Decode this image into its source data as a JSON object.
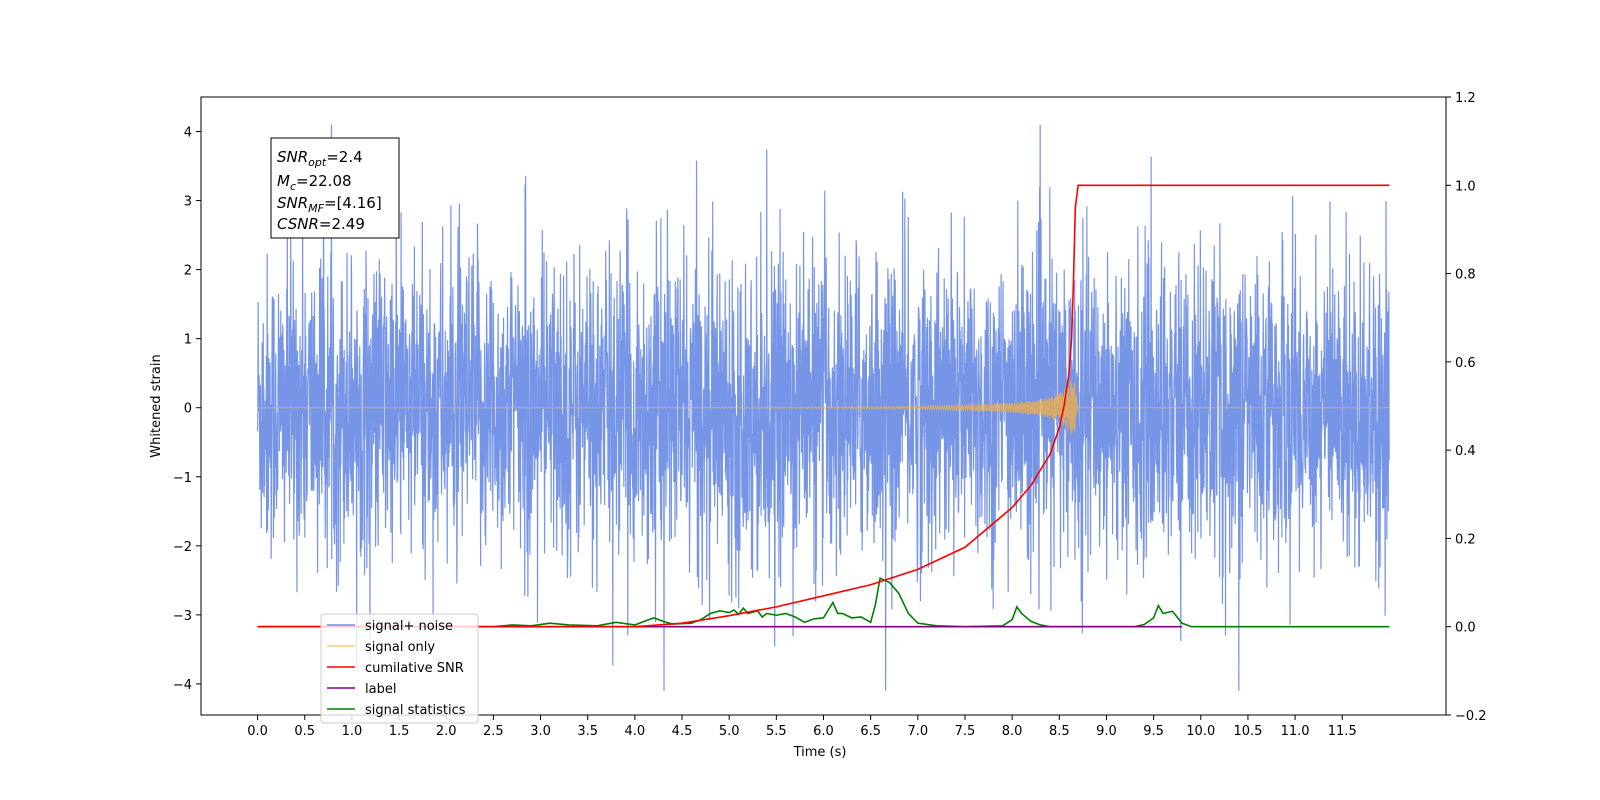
{
  "chart_data": {
    "type": "line",
    "xlabel": "Time (s)",
    "ylabel": "Whitened strain",
    "xlim": [
      -0.6,
      12.6
    ],
    "ylim": [
      -4.45,
      4.5
    ],
    "y2lim": [
      -0.2,
      1.2
    ],
    "x_ticks": [
      0.0,
      0.5,
      1.0,
      1.5,
      2.0,
      2.5,
      3.0,
      3.5,
      4.0,
      4.5,
      5.0,
      5.5,
      6.0,
      6.5,
      7.0,
      7.5,
      8.0,
      8.5,
      9.0,
      9.5,
      10.0,
      10.5,
      11.0,
      11.5
    ],
    "x_tick_labels": [
      "0.0",
      "0.5",
      "1.0",
      "1.5",
      "2.0",
      "2.5",
      "3.0",
      "3.5",
      "4.0",
      "4.5",
      "5.0",
      "5.5",
      "6.0",
      "6.5",
      "7.0",
      "7.5",
      "8.0",
      "8.5",
      "9.0",
      "9.5",
      "10.0",
      "10.5",
      "11.0",
      "11.5"
    ],
    "y_ticks": [
      -4,
      -3,
      -2,
      -1,
      0,
      1,
      2,
      3,
      4
    ],
    "y_tick_labels": [
      "−4",
      "−3",
      "−2",
      "−1",
      "0",
      "1",
      "2",
      "3",
      "4"
    ],
    "y2_ticks": [
      -0.2,
      0.0,
      0.2,
      0.4,
      0.6,
      0.8,
      1.0,
      1.2
    ],
    "y2_tick_labels": [
      "−0.2",
      "0.0",
      "0.2",
      "0.4",
      "0.6",
      "0.8",
      "1.0",
      "1.2"
    ],
    "grid": false,
    "legend_position": "lower-left",
    "colors": {
      "noise": "#6f8fe6",
      "signal": "#f5b041",
      "csnr": "#ff0000",
      "label": "#800080",
      "stats": "#008000"
    },
    "series": [
      {
        "name": "signal+ noise",
        "axis": "left",
        "description_range": [
          -4.1,
          4.1
        ],
        "x_range": [
          0.0,
          12.0
        ]
      },
      {
        "name": "signal only",
        "axis": "left",
        "x": [
          0.0,
          4.0,
          6.0,
          7.0,
          7.5,
          8.0,
          8.3,
          8.5,
          8.6,
          8.65,
          8.7
        ],
        "envelope": [
          0.0,
          0.0,
          0.01,
          0.02,
          0.04,
          0.07,
          0.12,
          0.2,
          0.35,
          0.48,
          0.0
        ]
      },
      {
        "name": "cumilative SNR",
        "axis": "right",
        "x": [
          0.0,
          4.0,
          4.5,
          5.0,
          5.5,
          6.0,
          6.5,
          7.0,
          7.5,
          8.0,
          8.2,
          8.4,
          8.5,
          8.55,
          8.6,
          8.63,
          8.65,
          8.67,
          8.7,
          12.0
        ],
        "values": [
          0.0,
          0.0,
          0.008,
          0.025,
          0.045,
          0.07,
          0.095,
          0.13,
          0.18,
          0.27,
          0.32,
          0.39,
          0.45,
          0.5,
          0.57,
          0.65,
          0.78,
          0.95,
          1.0,
          1.0
        ]
      },
      {
        "name": "label",
        "axis": "right",
        "x": [
          0.0,
          9.8
        ],
        "values": [
          0.0,
          0.0
        ]
      },
      {
        "name": "signal statistics",
        "axis": "right",
        "x": [
          0.0,
          2.5,
          2.7,
          2.9,
          3.1,
          3.3,
          3.6,
          3.8,
          4.0,
          4.1,
          4.2,
          4.3,
          4.4,
          4.6,
          4.7,
          4.8,
          4.9,
          5.0,
          5.05,
          5.1,
          5.15,
          5.2,
          5.3,
          5.35,
          5.4,
          5.5,
          5.6,
          5.7,
          5.8,
          5.9,
          6.0,
          6.1,
          6.15,
          6.2,
          6.3,
          6.4,
          6.5,
          6.55,
          6.6,
          6.7,
          6.8,
          6.9,
          7.0,
          7.2,
          7.5,
          7.9,
          8.0,
          8.05,
          8.1,
          8.2,
          8.3,
          8.4,
          9.3,
          9.4,
          9.5,
          9.55,
          9.6,
          9.7,
          9.8,
          9.9,
          12.0
        ],
        "values": [
          0.0,
          0.0,
          0.004,
          0.002,
          0.008,
          0.004,
          0.002,
          0.01,
          0.004,
          0.012,
          0.02,
          0.012,
          0.006,
          0.008,
          0.016,
          0.03,
          0.036,
          0.032,
          0.038,
          0.028,
          0.042,
          0.03,
          0.036,
          0.022,
          0.03,
          0.026,
          0.03,
          0.022,
          0.01,
          0.018,
          0.02,
          0.055,
          0.03,
          0.03,
          0.02,
          0.022,
          0.01,
          0.05,
          0.11,
          0.1,
          0.075,
          0.03,
          0.008,
          0.002,
          0.0,
          0.002,
          0.016,
          0.045,
          0.03,
          0.012,
          0.004,
          0.0,
          0.0,
          0.005,
          0.02,
          0.048,
          0.03,
          0.035,
          0.008,
          0.0,
          0.0
        ]
      }
    ],
    "annotations": {
      "snr_opt": "2.4",
      "mc": "22.08",
      "snr_mf": "[4.16]",
      "csnr": "2.49"
    },
    "legend_entries": [
      "signal+ noise",
      "signal only",
      "cumilative SNR",
      "label",
      "signal statistics"
    ]
  },
  "info_box": {
    "line1_main": "SNR",
    "line1_sub": "opt",
    "line1_val": "=2.4",
    "line2_main": "M",
    "line2_sub": "c",
    "line2_val": "=22.08",
    "line3_main": "SNR",
    "line3_sub": "MF",
    "line3_val": "=[4.16]",
    "line4_main": "CSNR",
    "line4_val": "=2.49"
  }
}
